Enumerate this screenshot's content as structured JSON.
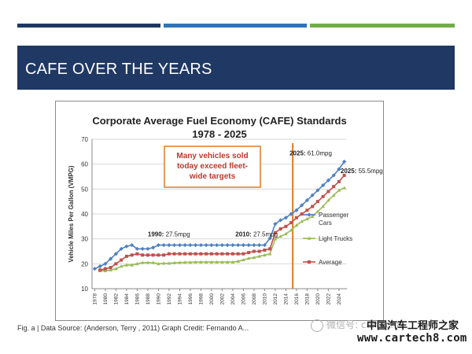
{
  "slide": {
    "title": "CAFE OVER THE YEARS",
    "colors": {
      "banner": "#1f3864",
      "bar_dark": "#1f3864",
      "bar_mid": "#2e75b6",
      "bar_light": "#70ad47"
    }
  },
  "caption": "Fig. a | Data Source: (Anderson, Terry , 2011)  Graph Credit: Fernando A...",
  "watermark": {
    "text": "微信号: cartech8",
    "icon": "wechat-icon"
  },
  "brand": {
    "name": "中国汽车工程师之家",
    "url": "www.cartech8.com"
  },
  "chart_data": {
    "type": "line",
    "title_line1": "Corporate Average Fuel Economy (CAFE) Standards",
    "title_line2": "1978 - 2025",
    "ylabel": "Vehicle Miles Per Gallon (VMPG)",
    "xlabel": "",
    "ylim": [
      10,
      70
    ],
    "yticks": [
      10,
      20,
      30,
      40,
      50,
      60,
      70
    ],
    "xticks": [
      1978,
      1980,
      1982,
      1984,
      1986,
      1988,
      1990,
      1992,
      1994,
      1996,
      1998,
      2000,
      2002,
      2004,
      2006,
      2008,
      2010,
      2012,
      2014,
      2016,
      2018,
      2020,
      2022,
      2024
    ],
    "grid": true,
    "legend_position": "right",
    "x": [
      1978,
      1979,
      1980,
      1981,
      1982,
      1983,
      1984,
      1985,
      1986,
      1987,
      1988,
      1989,
      1990,
      1991,
      1992,
      1993,
      1994,
      1995,
      1996,
      1997,
      1998,
      1999,
      2000,
      2001,
      2002,
      2003,
      2004,
      2005,
      2006,
      2007,
      2008,
      2009,
      2010,
      2011,
      2012,
      2013,
      2014,
      2015,
      2016,
      2017,
      2018,
      2019,
      2020,
      2021,
      2022,
      2023,
      2024,
      2025
    ],
    "series": [
      {
        "name": "Passenger Cars",
        "color": "#4f81bd",
        "marker": "diamond",
        "values": [
          18,
          19,
          20,
          22,
          24,
          26,
          27,
          27.5,
          26,
          26,
          26,
          26.5,
          27.5,
          27.5,
          27.5,
          27.5,
          27.5,
          27.5,
          27.5,
          27.5,
          27.5,
          27.5,
          27.5,
          27.5,
          27.5,
          27.5,
          27.5,
          27.5,
          27.5,
          27.5,
          27.5,
          27.5,
          27.5,
          30.2,
          36,
          37.5,
          38.5,
          40,
          41.5,
          43.5,
          45.5,
          47.5,
          49.5,
          51.5,
          53.5,
          55.5,
          58,
          61
        ]
      },
      {
        "name": "Light Trucks",
        "color": "#9bbb59",
        "marker": "triangle",
        "values": [
          null,
          17.2,
          17.2,
          17.5,
          18,
          19,
          19.5,
          19.5,
          20,
          20.5,
          20.5,
          20.5,
          20,
          20.2,
          20.2,
          20.4,
          20.5,
          20.6,
          20.6,
          20.7,
          20.7,
          20.7,
          20.7,
          20.7,
          20.7,
          20.7,
          20.7,
          21,
          21.6,
          22.2,
          22.5,
          23,
          23.5,
          24,
          30,
          31,
          32,
          33.5,
          35.5,
          37,
          38,
          39,
          41,
          43,
          45.5,
          47.5,
          49.5,
          50.5
        ]
      },
      {
        "name": "Average",
        "color": "#c0504d",
        "marker": "square",
        "values": [
          null,
          17.5,
          18,
          18.5,
          20,
          21.5,
          23,
          23.5,
          24,
          23.5,
          23.5,
          23.5,
          23.5,
          23.5,
          24,
          24,
          24,
          24,
          24,
          24,
          24,
          24,
          24,
          24,
          24,
          24,
          24,
          24,
          24,
          24.5,
          25,
          25,
          25.5,
          26,
          32.5,
          34,
          35,
          36.5,
          38.5,
          40,
          41.5,
          43,
          45,
          47,
          49,
          51,
          53,
          55.5
        ]
      }
    ],
    "annotations": [
      {
        "text": "Many vehicles sold today exceed fleet-wide targets",
        "x": 1995.5,
        "y": 66,
        "style": "boxed"
      },
      {
        "text": "1990:",
        "value": "27.5mpg",
        "x": 1988,
        "y": 31
      },
      {
        "text": "2010:",
        "value": "27.5mpg",
        "x": 2004.5,
        "y": 31
      },
      {
        "text": "2025:",
        "value": "61.0mpg",
        "x": 2014.7,
        "y": 63.5
      },
      {
        "text": "2025:",
        "value": "55.5mpg",
        "x": 2024.3,
        "y": 56.5
      }
    ],
    "reference_line": {
      "x": 2015.3,
      "color": "#e07b20"
    }
  }
}
